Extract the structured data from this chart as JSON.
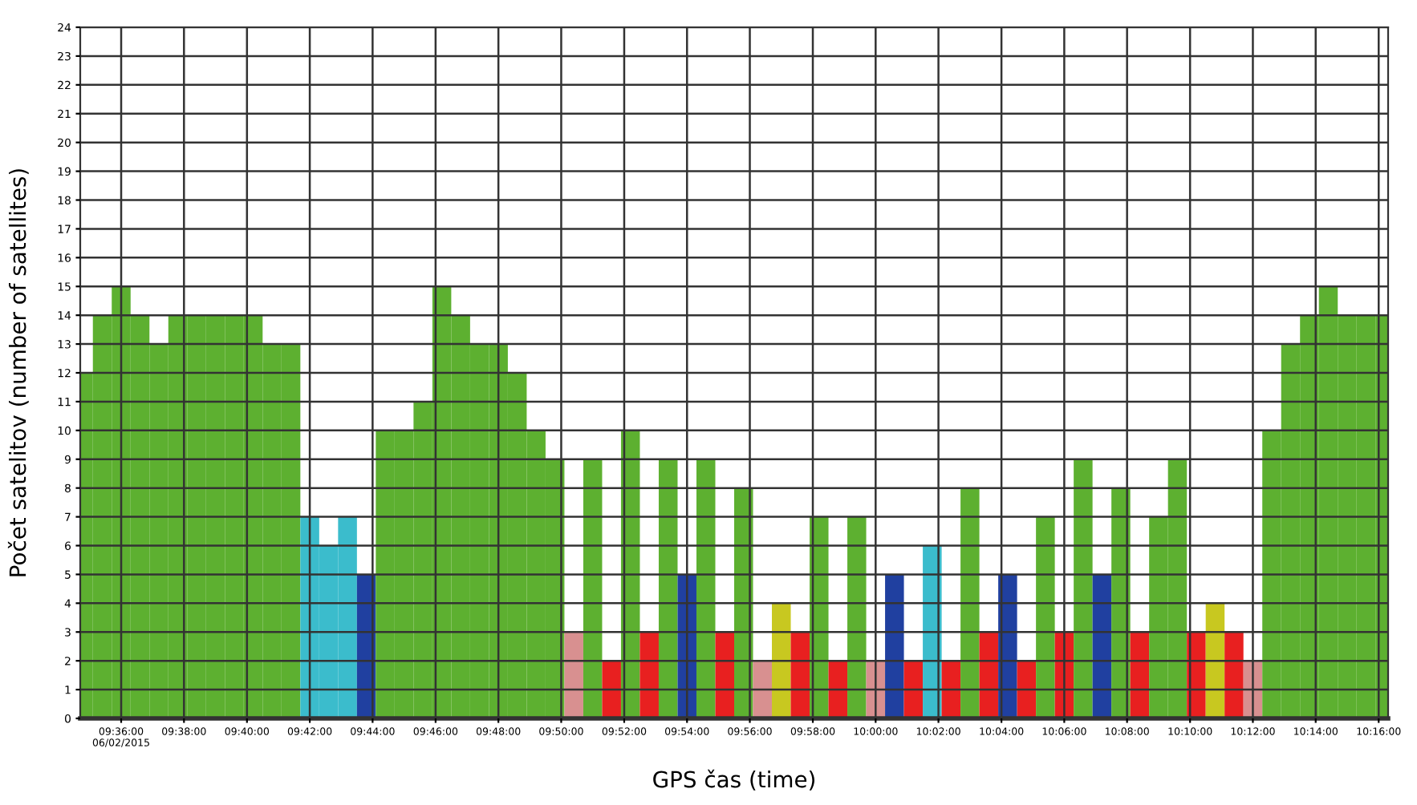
{
  "chart_data": {
    "type": "bar",
    "xlabel": "GPS čas (time)",
    "ylabel": "Počet satelitov (number of satellites)",
    "x": [
      9.58,
      9.59,
      9.6,
      9.61,
      9.62,
      9.63,
      9.64,
      9.65,
      9.66,
      9.67,
      9.68,
      9.69,
      9.7,
      9.71,
      9.72,
      9.73,
      9.74,
      9.75,
      9.76,
      9.77,
      9.78,
      9.79,
      9.8,
      9.81,
      9.82,
      9.83,
      9.84,
      9.85,
      9.86,
      9.87,
      9.88,
      9.89,
      9.9,
      9.91,
      9.92,
      9.93,
      9.94,
      9.95,
      9.96,
      9.97,
      9.98,
      9.99,
      10.0,
      10.01,
      10.02,
      10.03,
      10.04,
      10.05,
      10.06,
      10.07,
      10.08,
      10.09,
      10.1,
      10.11,
      10.12,
      10.13,
      10.14,
      10.15,
      10.16,
      10.17,
      10.18,
      10.19,
      10.2,
      10.21,
      10.22,
      10.23,
      10.24,
      10.25,
      10.26,
      10.27
    ],
    "values": [
      12,
      14,
      15,
      14,
      13,
      14,
      14,
      14,
      14,
      14,
      13,
      13,
      7,
      6,
      7,
      5,
      10,
      10,
      11,
      15,
      14,
      13,
      13,
      12,
      10,
      9,
      3,
      9,
      2,
      10,
      3,
      9,
      5,
      9,
      3,
      8,
      2,
      4,
      3,
      7,
      2,
      7,
      2,
      5,
      2,
      6,
      2,
      8,
      3,
      5,
      2,
      7,
      3,
      9,
      5,
      8,
      3,
      7,
      9,
      3,
      4,
      3,
      2,
      10,
      13,
      14,
      15,
      14,
      14,
      14
    ],
    "colors": [
      "#5db030",
      "#5db030",
      "#5db030",
      "#5db030",
      "#5db030",
      "#5db030",
      "#5db030",
      "#5db030",
      "#5db030",
      "#5db030",
      "#5db030",
      "#5db030",
      "#3bbccc",
      "#3bbccc",
      "#3bbccc",
      "#2040a0",
      "#5db030",
      "#5db030",
      "#5db030",
      "#5db030",
      "#5db030",
      "#5db030",
      "#5db030",
      "#5db030",
      "#5db030",
      "#5db030",
      "#d89090",
      "#5db030",
      "#e82020",
      "#5db030",
      "#e82020",
      "#5db030",
      "#2040a0",
      "#5db030",
      "#e82020",
      "#5db030",
      "#d89090",
      "#c8c820",
      "#e82020",
      "#5db030",
      "#e82020",
      "#5db030",
      "#d89090",
      "#2040a0",
      "#e82020",
      "#3bbccc",
      "#e82020",
      "#5db030",
      "#e82020",
      "#2040a0",
      "#e82020",
      "#5db030",
      "#e82020",
      "#5db030",
      "#2040a0",
      "#5db030",
      "#e82020",
      "#5db030",
      "#5db030",
      "#e82020",
      "#c8c820",
      "#e82020",
      "#d89090",
      "#5db030",
      "#5db030",
      "#5db030",
      "#5db030",
      "#5db030",
      "#5db030",
      "#5db030"
    ],
    "xlim": [
      9.5783,
      10.2717
    ],
    "xticks": [
      {
        "value": 9.6,
        "label": "09:36:00\n06/02/2015"
      },
      {
        "value": 9.6333,
        "label": "09:38:00"
      },
      {
        "value": 9.6667,
        "label": "09:40:00"
      },
      {
        "value": 9.7,
        "label": "09:42:00"
      },
      {
        "value": 9.7333,
        "label": "09:44:00"
      },
      {
        "value": 9.7667,
        "label": "09:46:00"
      },
      {
        "value": 9.8,
        "label": "09:48:00"
      },
      {
        "value": 9.8333,
        "label": "09:50:00"
      },
      {
        "value": 9.8667,
        "label": "09:52:00"
      },
      {
        "value": 9.9,
        "label": "09:54:00"
      },
      {
        "value": 9.9333,
        "label": "09:56:00"
      },
      {
        "value": 9.9667,
        "label": "09:58:00"
      },
      {
        "value": 10.0,
        "label": "10:00:00"
      },
      {
        "value": 10.0333,
        "label": "10:02:00"
      },
      {
        "value": 10.0667,
        "label": "10:04:00"
      },
      {
        "value": 10.1,
        "label": "10:06:00"
      },
      {
        "value": 10.1333,
        "label": "10:08:00"
      },
      {
        "value": 10.1667,
        "label": "10:10:00"
      },
      {
        "value": 10.2,
        "label": "10:12:00"
      },
      {
        "value": 10.2333,
        "label": "10:14:00"
      },
      {
        "value": 10.2667,
        "label": "10:16:00"
      }
    ],
    "ylim": [
      0,
      24
    ],
    "yticks": [
      0,
      1,
      2,
      3,
      4,
      5,
      6,
      7,
      8,
      9,
      10,
      11,
      12,
      13,
      14,
      15,
      16,
      17,
      18,
      19,
      20,
      21,
      22,
      23,
      24
    ],
    "grid": true
  }
}
